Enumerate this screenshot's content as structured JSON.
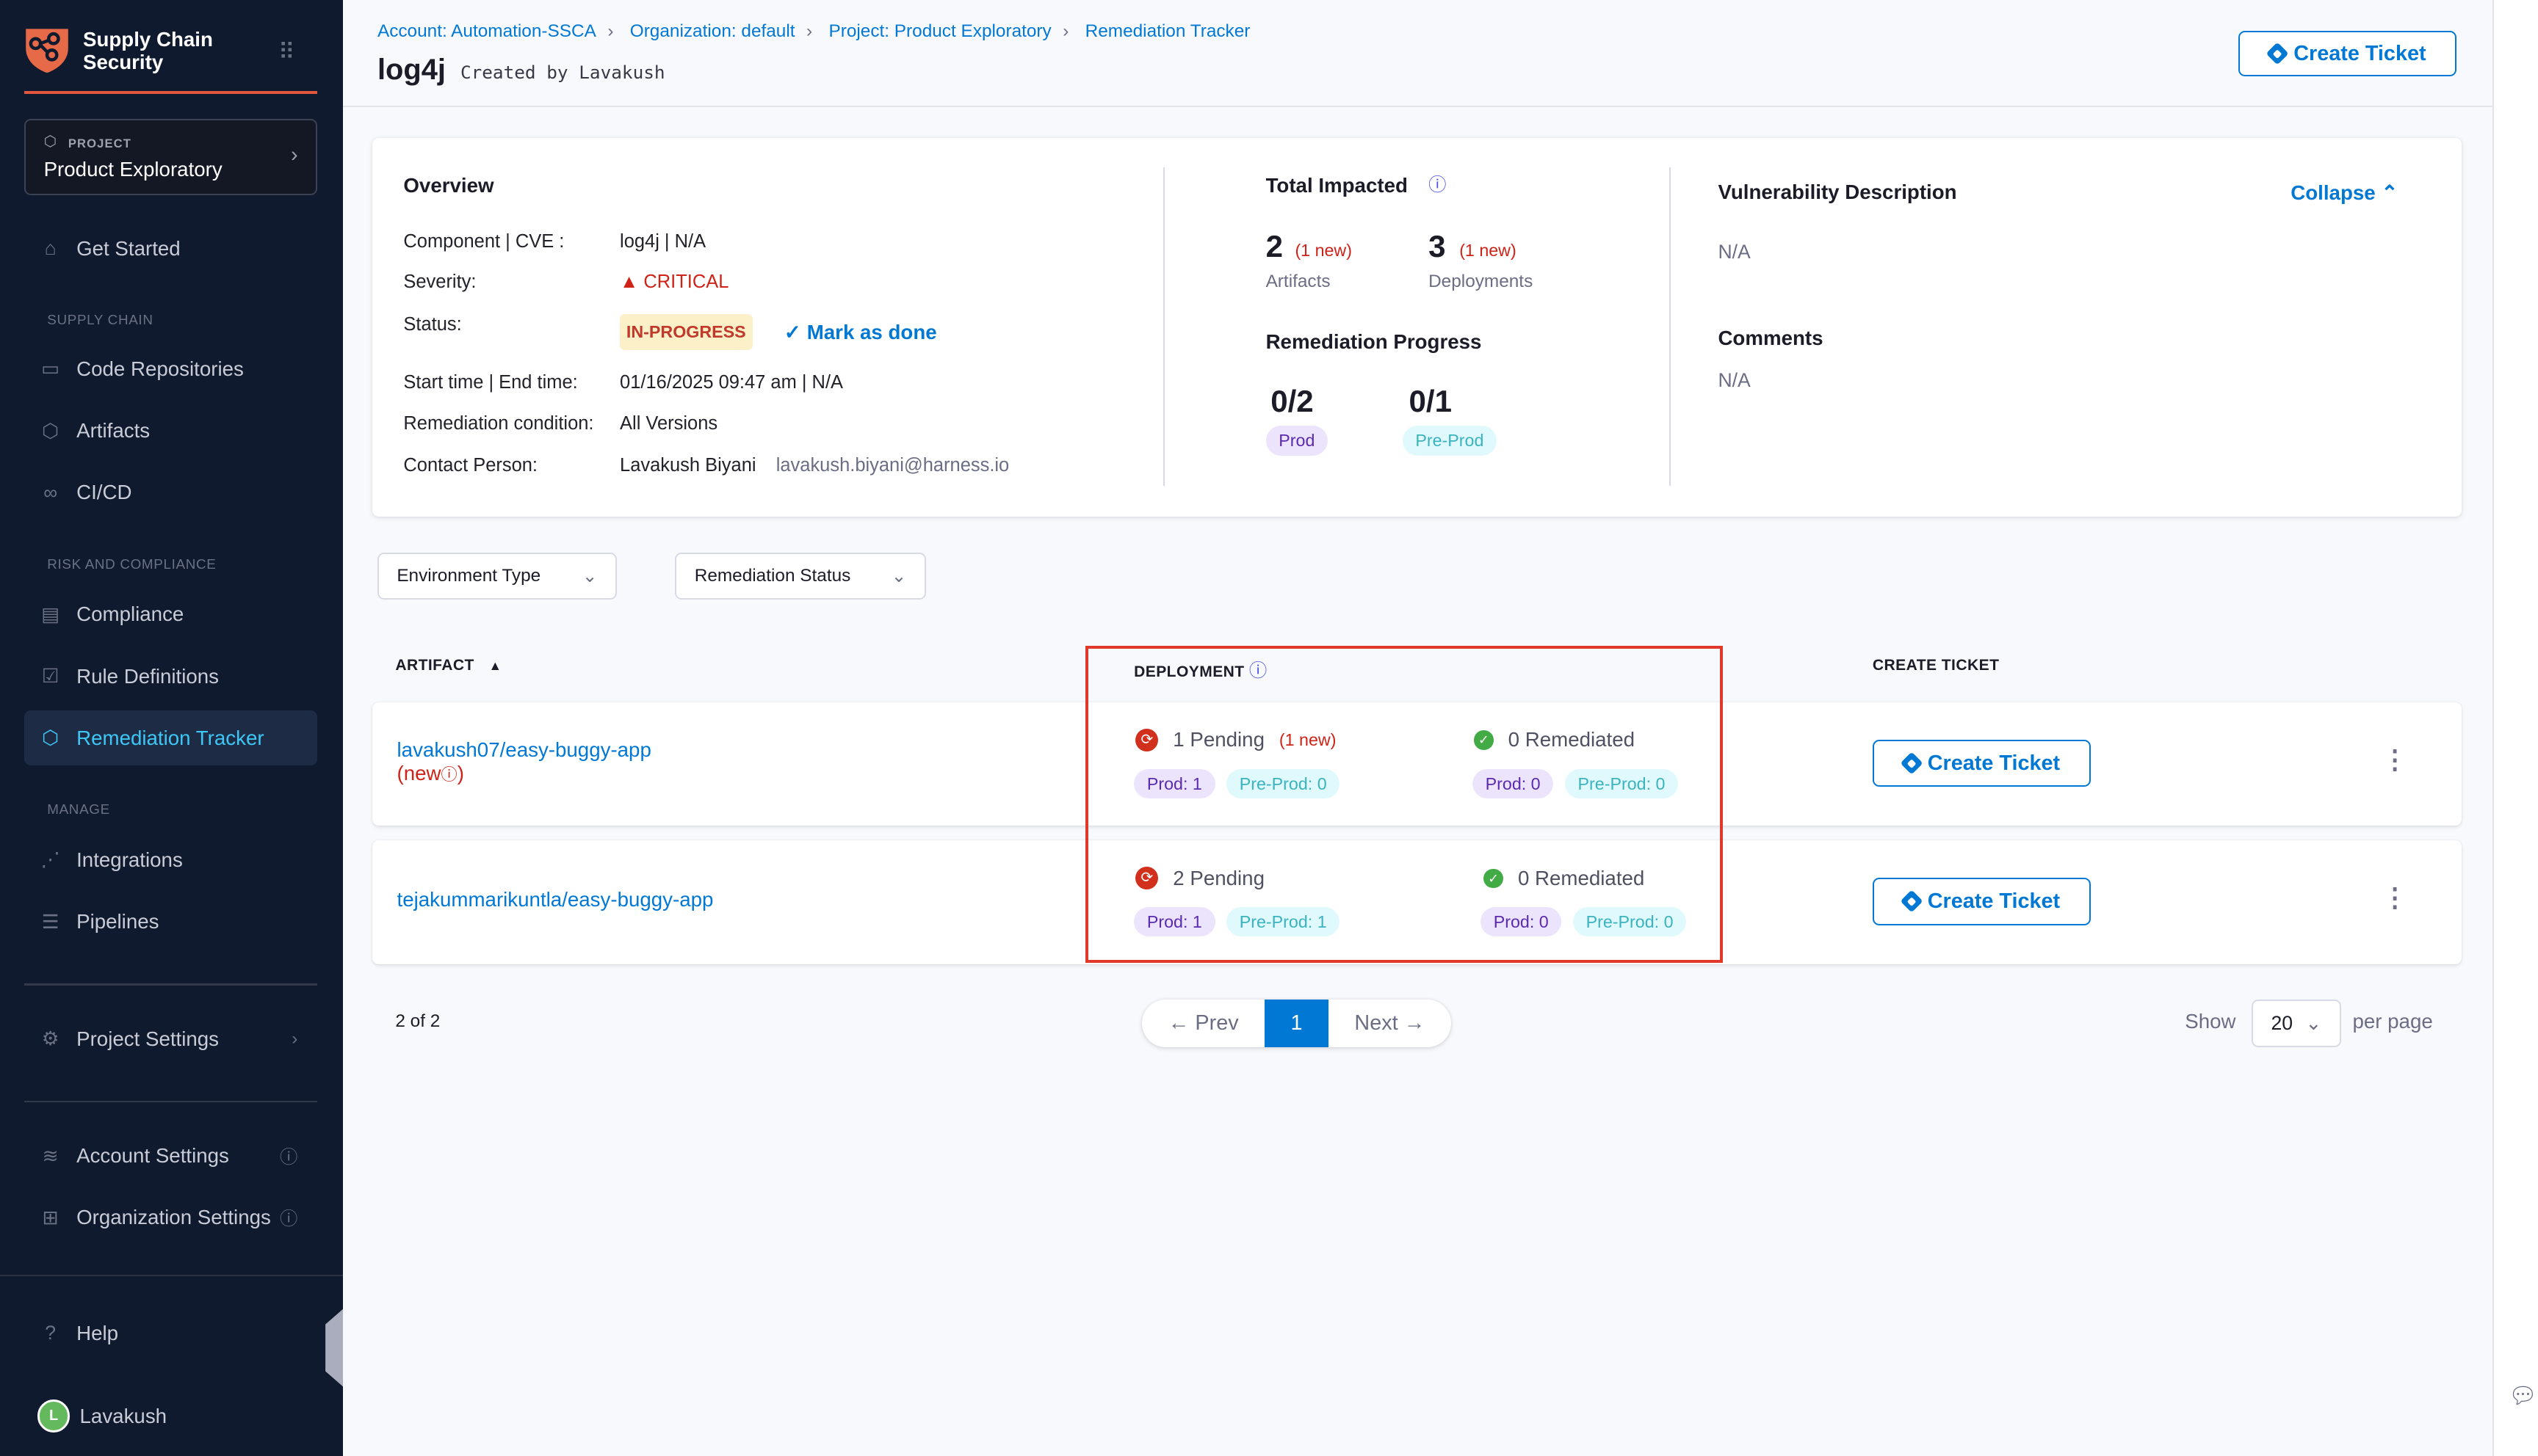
{
  "sidebar": {
    "brand": "Supply Chain Security",
    "project_label": "PROJECT",
    "project_name": "Product Exploratory",
    "get_started": "Get Started",
    "section_supply": "SUPPLY CHAIN",
    "code_repos": "Code Repositories",
    "artifacts": "Artifacts",
    "cicd": "CI/CD",
    "section_risk": "RISK AND COMPLIANCE",
    "compliance": "Compliance",
    "rules": "Rule Definitions",
    "remediation": "Remediation Tracker",
    "section_manage": "MANAGE",
    "integrations": "Integrations",
    "pipelines": "Pipelines",
    "project_settings": "Project Settings",
    "account_settings": "Account Settings",
    "org_settings": "Organization Settings",
    "help": "Help",
    "user": "Lavakush",
    "user_initial": "L"
  },
  "header": {
    "breadcrumbs": [
      "Account: Automation-SSCA",
      "Organization: default",
      "Project: Product Exploratory",
      "Remediation Tracker"
    ],
    "title": "log4j",
    "subtitle": "Created by Lavakush",
    "create_ticket": "Create Ticket"
  },
  "overview": {
    "title": "Overview",
    "component_label": "Component | CVE :",
    "component_value": "log4j | N/A",
    "severity_label": "Severity:",
    "severity_value": "CRITICAL",
    "status_label": "Status:",
    "status_value": "IN-PROGRESS",
    "mark_done": "Mark as done",
    "time_label": "Start time | End time:",
    "time_value": "01/16/2025 09:47 am | N/A",
    "condition_label": "Remediation condition:",
    "condition_value": "All Versions",
    "contact_label": "Contact Person:",
    "contact_name": "Lavakush Biyani",
    "contact_email": "lavakush.biyani@harness.io"
  },
  "impacted": {
    "title": "Total Impacted",
    "artifacts_count": "2",
    "artifacts_new": "(1 new)",
    "artifacts_label": "Artifacts",
    "deployments_count": "3",
    "deployments_new": "(1 new)",
    "deployments_label": "Deployments",
    "progress_title": "Remediation Progress",
    "prod_progress": "0/2",
    "prod_label": "Prod",
    "preprod_progress": "0/1",
    "preprod_label": "Pre-Prod"
  },
  "vuln": {
    "title": "Vulnerability Description",
    "collapse": "Collapse",
    "description": "N/A",
    "comments_title": "Comments",
    "comments": "N/A"
  },
  "filters": {
    "env_type": "Environment Type",
    "rem_status": "Remediation Status"
  },
  "table": {
    "headers": {
      "artifact": "ARTIFACT",
      "deployment": "DEPLOYMENT",
      "create_ticket": "CREATE TICKET"
    },
    "rows": [
      {
        "artifact": "lavakush07/easy-buggy-app",
        "new_tag": "(new",
        "new_close": ")",
        "pending": "1 Pending",
        "pending_new": "(1 new)",
        "pend_prod": "Prod: 1",
        "pend_preprod": "Pre-Prod: 0",
        "remediated": "0 Remediated",
        "rem_prod": "Prod: 0",
        "rem_preprod": "Pre-Prod: 0",
        "button": "Create Ticket"
      },
      {
        "artifact": "tejakummarikuntla/easy-buggy-app",
        "pending": "2 Pending",
        "pend_prod": "Prod: 1",
        "pend_preprod": "Pre-Prod: 1",
        "remediated": "0 Remediated",
        "rem_prod": "Prod: 0",
        "rem_preprod": "Pre-Prod: 0",
        "button": "Create Ticket"
      }
    ]
  },
  "pagination": {
    "summary": "2 of 2",
    "prev": "← Prev",
    "current": "1",
    "next": "Next →",
    "show": "Show",
    "page_size": "20",
    "per_page": "per page"
  },
  "colors": {
    "accent": "#0278d5",
    "sidebar_bg": "#0f1a2e",
    "critical": "#cf2318",
    "highlight_box": "#e0392b"
  }
}
